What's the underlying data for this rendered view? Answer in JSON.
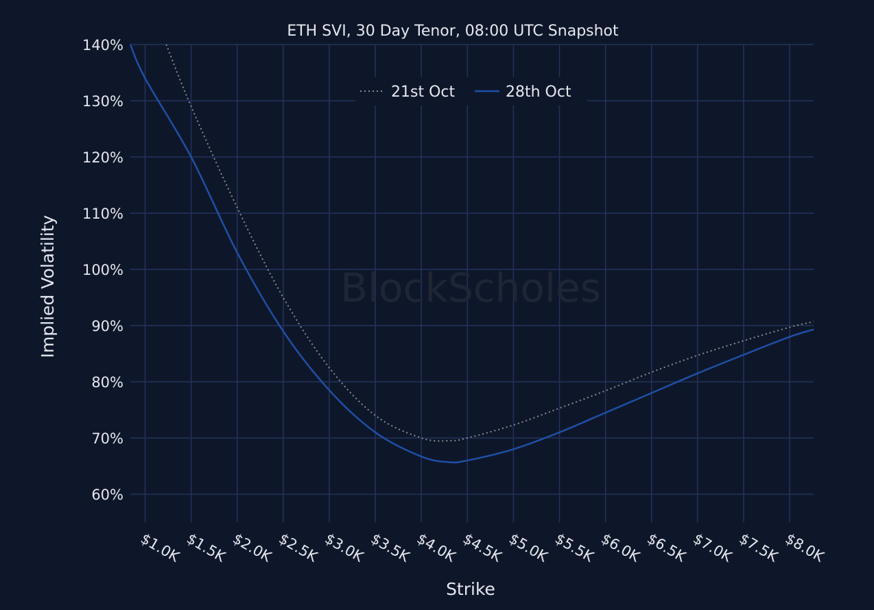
{
  "chart_data": {
    "type": "line",
    "title": "ETH SVI, 30 Day Tenor, 08:00 UTC Snapshot",
    "xlabel": "Strike",
    "ylabel": "Implied Volatility",
    "watermark": "BlockScholes",
    "xlim": [
      840,
      8260
    ],
    "ylim": [
      55,
      140
    ],
    "grid": true,
    "legend_position": "top-center",
    "x_ticks": [
      1000,
      1500,
      2000,
      2500,
      3000,
      3500,
      4000,
      4500,
      5000,
      5500,
      6000,
      6500,
      7000,
      7500,
      8000
    ],
    "x_tick_labels": [
      "$1.0K",
      "$1.5K",
      "$2.0K",
      "$2.5K",
      "$3.0K",
      "$3.5K",
      "$4.0K",
      "$4.5K",
      "$5.0K",
      "$5.5K",
      "$6.0K",
      "$6.5K",
      "$7.0K",
      "$7.5K",
      "$8.0K"
    ],
    "y_ticks": [
      60,
      70,
      80,
      90,
      100,
      110,
      120,
      130,
      140
    ],
    "y_tick_labels": [
      "60%",
      "70%",
      "80%",
      "90%",
      "100%",
      "110%",
      "120%",
      "130%",
      "140%"
    ],
    "series": [
      {
        "name": "21st Oct",
        "color": "#8c8c8c",
        "style": "dotted",
        "x": [
          1230,
          1500,
          2000,
          2500,
          3000,
          3500,
          4000,
          4300,
          4500,
          5000,
          5500,
          6000,
          6500,
          7000,
          7500,
          8000,
          8260
        ],
        "y": [
          140,
          129,
          111,
          95,
          82.5,
          74,
          70,
          69.5,
          70,
          72.3,
          75.3,
          78.4,
          81.7,
          84.7,
          87.3,
          89.7,
          90.7
        ]
      },
      {
        "name": "28th Oct",
        "color": "#1f4fa6",
        "style": "solid",
        "x": [
          840,
          1000,
          1500,
          2000,
          2500,
          3000,
          3500,
          4000,
          4300,
          4500,
          5000,
          5500,
          6000,
          6500,
          7000,
          7500,
          8000,
          8260
        ],
        "y": [
          140,
          134,
          120,
          103,
          89,
          78.5,
          71,
          66.7,
          65.7,
          66,
          68,
          71,
          74.5,
          78,
          81.5,
          84.8,
          88,
          89.3
        ]
      }
    ]
  },
  "colors": {
    "background": "#0e172a",
    "grid": "#22335a",
    "text": "#e6e8ee"
  }
}
